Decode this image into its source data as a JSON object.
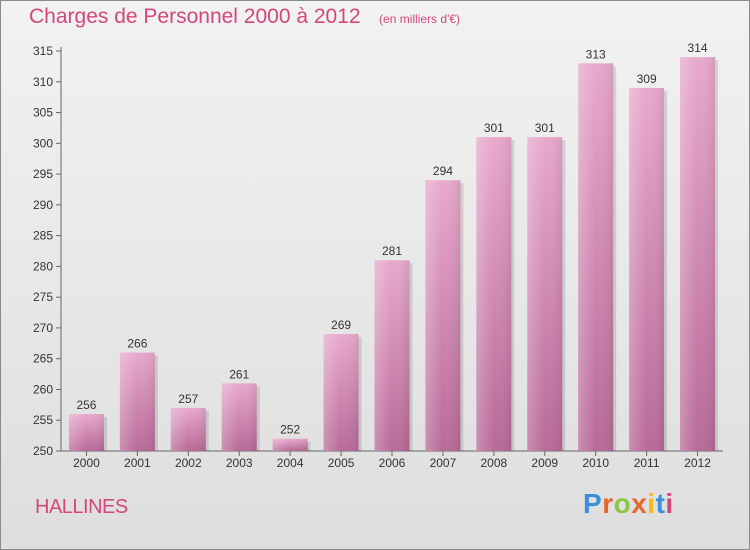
{
  "header": {
    "title": "Charges de Personnel 2000 à 2012",
    "subtitle": "(en milliers d'€)"
  },
  "footer": {
    "commune": "HALLINES",
    "logo": "Proxiti"
  },
  "colors": {
    "title": "#d2477c",
    "bar_top": "#e8a8cc",
    "bar_bottom": "#b86a98",
    "logo_letters": [
      "#3a8fd8",
      "#e8662c",
      "#8cc63e",
      "#e8662c",
      "#f5b81d",
      "#3a8fd8",
      "#d2477c"
    ]
  },
  "chart_data": {
    "type": "bar",
    "categories": [
      "2000",
      "2001",
      "2002",
      "2003",
      "2004",
      "2005",
      "2006",
      "2007",
      "2008",
      "2009",
      "2010",
      "2011",
      "2012"
    ],
    "values": [
      256,
      266,
      257,
      261,
      252,
      269,
      281,
      294,
      301,
      301,
      313,
      309,
      314
    ],
    "ylim": [
      250,
      315
    ],
    "yticks": [
      250,
      255,
      260,
      265,
      270,
      275,
      280,
      285,
      290,
      295,
      300,
      305,
      310,
      315
    ],
    "grid": false
  }
}
